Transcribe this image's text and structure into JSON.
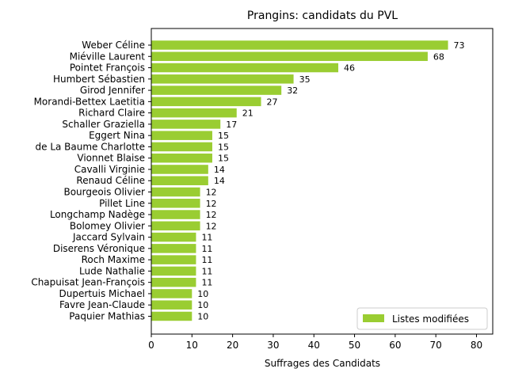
{
  "chart_data": {
    "type": "bar",
    "orientation": "horizontal",
    "title": "Prangins: candidats du PVL",
    "xlabel": "Suffrages des Candidats",
    "ylabel": "",
    "xlim": [
      0,
      84
    ],
    "x_ticks": [
      0,
      10,
      20,
      30,
      40,
      50,
      60,
      70,
      80
    ],
    "grid": false,
    "legend_position": "bottom-right",
    "bar_color": "#9acd32",
    "categories": [
      "Weber Céline",
      "Miéville Laurent",
      "Pointet François",
      "Humbert Sébastien",
      "Girod Jennifer",
      "Morandi-Bettex Laetitia",
      "Richard Claire",
      "Schaller Graziella",
      "Eggert Nina",
      "de La Baume Charlotte",
      "Vionnet Blaise",
      "Cavalli Virginie",
      "Renaud Céline",
      "Bourgeois Olivier",
      "Pillet Line",
      "Longchamp Nadège",
      "Bolomey Olivier",
      "Jaccard Sylvain",
      "Diserens Véronique",
      "Roch Maxime",
      "Lude Nathalie",
      "Chapuisat Jean-François",
      "Dupertuis Michael",
      "Favre Jean-Claude",
      "Paquier Mathias"
    ],
    "series": [
      {
        "name": "Listes modifiées",
        "values": [
          73,
          68,
          46,
          35,
          32,
          27,
          21,
          17,
          15,
          15,
          15,
          14,
          14,
          12,
          12,
          12,
          12,
          11,
          11,
          11,
          11,
          11,
          10,
          10,
          10
        ]
      }
    ]
  }
}
